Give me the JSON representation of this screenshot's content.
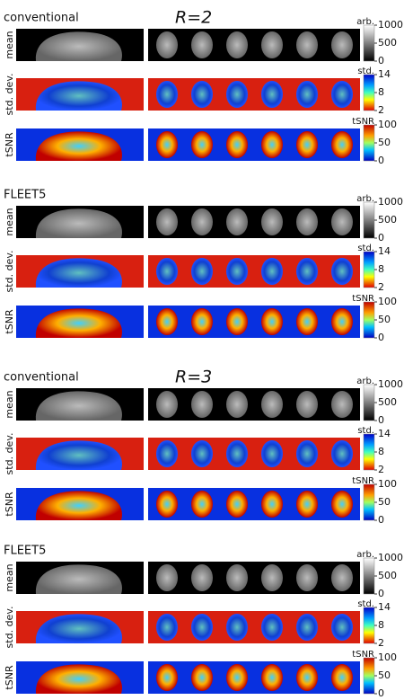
{
  "panels": [
    {
      "heading": "R=2",
      "method": "conventional",
      "rows": [
        {
          "label": "mean",
          "unit": "arb.",
          "lim": [
            0,
            1000
          ],
          "ticks": [
            0,
            500,
            1000
          ]
        },
        {
          "label": "std. dev.",
          "unit": "std.",
          "lim": [
            2,
            14
          ],
          "ticks": [
            2,
            8,
            14
          ]
        },
        {
          "label": "tSNR",
          "unit": "tSNR",
          "lim": [
            0,
            100
          ],
          "ticks": [
            0,
            50,
            100
          ]
        }
      ]
    },
    {
      "method": "FLEET5",
      "rows": [
        {
          "label": "mean",
          "unit": "arb.",
          "lim": [
            0,
            1000
          ],
          "ticks": [
            0,
            500,
            1000
          ]
        },
        {
          "label": "std. dev.",
          "unit": "std.",
          "lim": [
            2,
            14
          ],
          "ticks": [
            2,
            8,
            14
          ]
        },
        {
          "label": "tSNR",
          "unit": "tSNR",
          "lim": [
            0,
            100
          ],
          "ticks": [
            0,
            50,
            100
          ]
        }
      ]
    },
    {
      "heading": "R=3",
      "method": "conventional",
      "rows": [
        {
          "label": "mean",
          "unit": "arb.",
          "lim": [
            0,
            1000
          ],
          "ticks": [
            0,
            500,
            1000
          ]
        },
        {
          "label": "std. dev.",
          "unit": "std.",
          "lim": [
            2,
            14
          ],
          "ticks": [
            2,
            8,
            14
          ]
        },
        {
          "label": "tSNR",
          "unit": "tSNR",
          "lim": [
            0,
            100
          ],
          "ticks": [
            0,
            50,
            100
          ]
        }
      ]
    },
    {
      "method": "FLEET5",
      "rows": [
        {
          "label": "mean",
          "unit": "arb.",
          "lim": [
            0,
            1000
          ],
          "ticks": [
            0,
            500,
            1000
          ]
        },
        {
          "label": "std. dev.",
          "unit": "std.",
          "lim": [
            2,
            14
          ],
          "ticks": [
            2,
            8,
            14
          ]
        },
        {
          "label": "tSNR",
          "unit": "tSNR",
          "lim": [
            0,
            100
          ],
          "ticks": [
            0,
            50,
            100
          ]
        }
      ]
    }
  ]
}
